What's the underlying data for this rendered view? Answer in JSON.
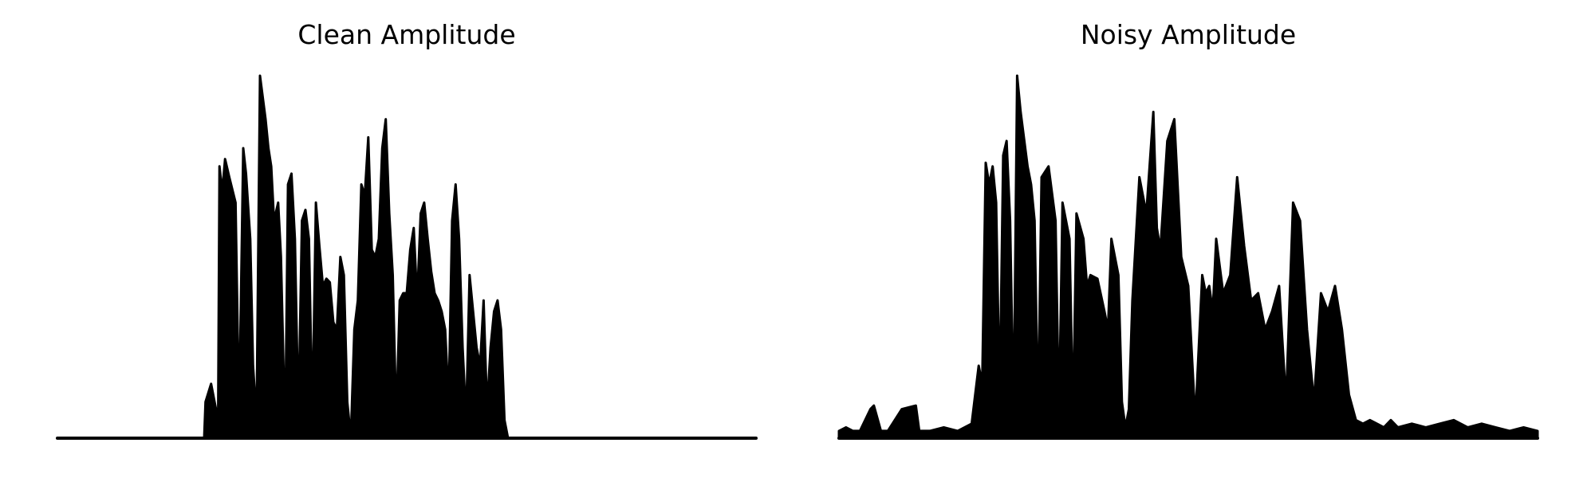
{
  "chart_data": [
    {
      "type": "area",
      "title": "Clean Amplitude",
      "xlabel": "",
      "ylabel": "",
      "axes_visible": false,
      "grid": false,
      "ylim": [
        0,
        1
      ],
      "color": "#000000",
      "series": [
        {
          "x": [
            0,
            0.21,
            0.212,
            0.22,
            0.23,
            0.232,
            0.236,
            0.24,
            0.246,
            0.255,
            0.26,
            0.266,
            0.27,
            0.276,
            0.28,
            0.285,
            0.29,
            0.298,
            0.302,
            0.306,
            0.31,
            0.316,
            0.32,
            0.326,
            0.33,
            0.335,
            0.34,
            0.345,
            0.35,
            0.355,
            0.36,
            0.365,
            0.37,
            0.375,
            0.38,
            0.385,
            0.39,
            0.395,
            0.4,
            0.405,
            0.41,
            0.415,
            0.42,
            0.425,
            0.43,
            0.435,
            0.44,
            0.445,
            0.45,
            0.455,
            0.46,
            0.465,
            0.47,
            0.475,
            0.48,
            0.485,
            0.49,
            0.495,
            0.5,
            0.505,
            0.51,
            0.515,
            0.52,
            0.525,
            0.53,
            0.535,
            0.54,
            0.545,
            0.55,
            0.555,
            0.56,
            0.565,
            0.57,
            0.575,
            0.58,
            0.585,
            0.59,
            0.595,
            0.6,
            0.605,
            0.61,
            0.615,
            0.62,
            0.625,
            0.63,
            0.635,
            0.64,
            0.645,
            0.65,
            0.655,
            0.66,
            0.665,
            0.67,
            0.675,
            0.68,
            0.685,
            0.69,
            0.695,
            0.7,
            0.705,
            0.71,
            0.715,
            0.72,
            0.725,
            0.73,
            0.735,
            0.74,
            0.745,
            0.75,
            0.755,
            0.76,
            0.765,
            0.77,
            0.775,
            0.78,
            0.785,
            0.79,
            0.795,
            0.8,
            0.805,
            0.81,
            0.815,
            0.82,
            1
          ],
          "y": [
            0,
            0,
            0.1,
            0.15,
            0.05,
            0.75,
            0.68,
            0.77,
            0.72,
            0.65,
            0.05,
            0.8,
            0.73,
            0.55,
            0.2,
            0.05,
            1.0,
            0.88,
            0.8,
            0.75,
            0.6,
            0.65,
            0.5,
            0.0,
            0.7,
            0.73,
            0.55,
            0.05,
            0.6,
            0.63,
            0.55,
            0.05,
            0.65,
            0.53,
            0.42,
            0.44,
            0.43,
            0.32,
            0.3,
            0.5,
            0.45,
            0.1,
            0.0,
            0.3,
            0.38,
            0.7,
            0.67,
            0.83,
            0.52,
            0.5,
            0.55,
            0.8,
            0.88,
            0.62,
            0.45,
            0.05,
            0.38,
            0.4,
            0.4,
            0.52,
            0.58,
            0.38,
            0.62,
            0.65,
            0.55,
            0.46,
            0.4,
            0.38,
            0.35,
            0.3,
            0.1,
            0.6,
            0.7,
            0.55,
            0.25,
            0.05,
            0.45,
            0.35,
            0.25,
            0.2,
            0.38,
            0.08,
            0.25,
            0.35,
            0.38,
            0.3,
            0.05,
            0.0,
            0.0,
            0.0,
            0.0,
            0.0,
            0.0,
            0.0,
            0.0,
            0.0,
            0.0,
            0.0,
            0.0,
            0.0,
            0.0,
            0.0,
            0.0,
            0.0,
            0.0,
            0.0,
            0.0,
            0.0,
            0.0,
            0.0,
            0.0,
            0.0,
            0.0,
            0.0,
            0.0,
            0.0,
            0.0,
            0.0,
            0.0,
            0.0,
            0.0,
            0.0,
            0.0,
            0.0
          ]
        }
      ]
    },
    {
      "type": "area",
      "title": "Noisy Amplitude",
      "xlabel": "",
      "ylabel": "",
      "axes_visible": false,
      "grid": false,
      "ylim": [
        0,
        1
      ],
      "color": "#000000",
      "series": [
        {
          "x": [
            0,
            0.01,
            0.02,
            0.03,
            0.045,
            0.05,
            0.06,
            0.065,
            0.07,
            0.09,
            0.11,
            0.115,
            0.12,
            0.13,
            0.15,
            0.17,
            0.19,
            0.2,
            0.205,
            0.21,
            0.215,
            0.22,
            0.225,
            0.23,
            0.235,
            0.24,
            0.245,
            0.25,
            0.255,
            0.26,
            0.27,
            0.275,
            0.28,
            0.285,
            0.29,
            0.3,
            0.31,
            0.315,
            0.32,
            0.325,
            0.33,
            0.335,
            0.34,
            0.35,
            0.355,
            0.36,
            0.37,
            0.38,
            0.385,
            0.39,
            0.4,
            0.405,
            0.41,
            0.415,
            0.42,
            0.43,
            0.44,
            0.45,
            0.455,
            0.46,
            0.47,
            0.48,
            0.49,
            0.5,
            0.51,
            0.52,
            0.525,
            0.53,
            0.535,
            0.54,
            0.55,
            0.56,
            0.57,
            0.58,
            0.59,
            0.6,
            0.61,
            0.62,
            0.63,
            0.64,
            0.65,
            0.66,
            0.67,
            0.68,
            0.69,
            0.7,
            0.71,
            0.72,
            0.73,
            0.74,
            0.75,
            0.76,
            0.77,
            0.78,
            0.79,
            0.8,
            0.82,
            0.84,
            0.86,
            0.88,
            0.9,
            0.92,
            0.94,
            0.96,
            0.98,
            1
          ],
          "y": [
            0.02,
            0.03,
            0.02,
            0.02,
            0.08,
            0.09,
            0.02,
            0.02,
            0.02,
            0.08,
            0.09,
            0.02,
            0.02,
            0.02,
            0.03,
            0.02,
            0.04,
            0.2,
            0.15,
            0.76,
            0.7,
            0.75,
            0.65,
            0.1,
            0.78,
            0.82,
            0.6,
            0.05,
            1.0,
            0.9,
            0.75,
            0.7,
            0.6,
            0.05,
            0.72,
            0.75,
            0.6,
            0.05,
            0.65,
            0.6,
            0.55,
            0.05,
            0.62,
            0.55,
            0.42,
            0.45,
            0.44,
            0.35,
            0.3,
            0.55,
            0.45,
            0.1,
            0.03,
            0.08,
            0.38,
            0.72,
            0.62,
            0.9,
            0.58,
            0.52,
            0.82,
            0.88,
            0.5,
            0.42,
            0.05,
            0.45,
            0.4,
            0.42,
            0.35,
            0.55,
            0.4,
            0.45,
            0.72,
            0.53,
            0.38,
            0.4,
            0.3,
            0.35,
            0.42,
            0.1,
            0.65,
            0.6,
            0.3,
            0.1,
            0.4,
            0.35,
            0.42,
            0.3,
            0.12,
            0.05,
            0.04,
            0.05,
            0.04,
            0.03,
            0.05,
            0.03,
            0.04,
            0.03,
            0.04,
            0.05,
            0.03,
            0.04,
            0.03,
            0.02,
            0.03,
            0.02
          ]
        }
      ]
    }
  ]
}
